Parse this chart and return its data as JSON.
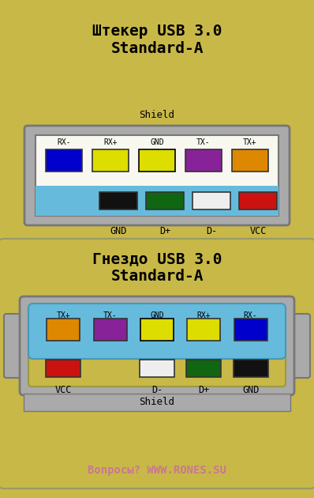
{
  "bg_color": "#c8b848",
  "title1": "Штекер USB 3.0\nStandard-A",
  "title2": "Гнездо USB 3.0\nStandard-A",
  "footer": "Вопросы? WWW.RONES.SU",
  "footer_color": "#c87890",
  "plug": {
    "top_pins": [
      {
        "label": "RX-",
        "color": "#0000cc"
      },
      {
        "label": "RX+",
        "color": "#dddd00"
      },
      {
        "label": "GND",
        "color": "hatched"
      },
      {
        "label": "TX-",
        "color": "#882299"
      },
      {
        "label": "TX+",
        "color": "#dd8800"
      }
    ],
    "bot_pins": [
      {
        "label": "GND",
        "color": "#111111"
      },
      {
        "label": "D+",
        "color": "#116611"
      },
      {
        "label": "D-",
        "color": "#eeeeee"
      },
      {
        "label": "VCC",
        "color": "#cc1111"
      }
    ],
    "bot_labels": [
      "GND",
      "D+",
      "D-",
      "VCC"
    ]
  },
  "socket": {
    "top_pins": [
      {
        "label": "TX+",
        "color": "#dd8800"
      },
      {
        "label": "TX-",
        "color": "#882299"
      },
      {
        "label": "GND",
        "color": "hatched"
      },
      {
        "label": "RX+",
        "color": "#dddd00"
      },
      {
        "label": "RX-",
        "color": "#0000cc"
      }
    ],
    "bot_pins": [
      {
        "label": "VCC",
        "color": "#cc1111"
      },
      {
        "label": "D-",
        "color": "#eeeeee"
      },
      {
        "label": "D+",
        "color": "#116611"
      },
      {
        "label": "GND",
        "color": "#111111"
      }
    ],
    "bot_labels": [
      "VCC",
      "D-",
      "D+",
      "GND"
    ]
  },
  "gray_frame": "#aaaaaa",
  "gray_dark": "#777777",
  "blue_body": "#66bbdd",
  "white_inner": "#f8f8f0",
  "gold_inner": "#c8b848"
}
